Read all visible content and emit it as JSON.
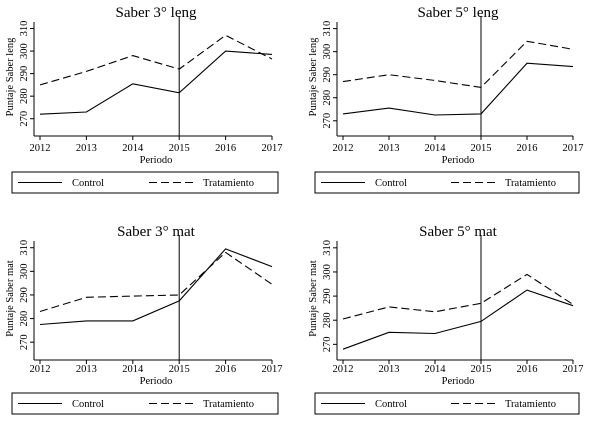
{
  "chart_data": [
    {
      "type": "line",
      "title": "Saber 3° leng",
      "xlabel": "Periodo",
      "ylabel": "Puntaje Saber leng",
      "x": [
        2012,
        2013,
        2014,
        2015,
        2016,
        2017
      ],
      "xlim": [
        2012,
        2017
      ],
      "ylim": [
        265,
        312
      ],
      "yticks": [
        270,
        280,
        290,
        300,
        310
      ],
      "vline": 2015,
      "series": [
        {
          "name": "Control",
          "dash": "solid",
          "values": [
            272,
            273,
            285.5,
            281.5,
            300,
            298.5
          ]
        },
        {
          "name": "Tratamiento",
          "dash": "dashed",
          "values": [
            285,
            291,
            298,
            292,
            307,
            296.5
          ]
        }
      ],
      "legend": [
        "Control",
        "Tratamiento"
      ]
    },
    {
      "type": "line",
      "title": "Saber 5° leng",
      "xlabel": "Periodo",
      "ylabel": "Puntaje Saber leng",
      "x": [
        2012,
        2013,
        2014,
        2015,
        2016,
        2017
      ],
      "xlim": [
        2012,
        2017
      ],
      "ylim": [
        266,
        312
      ],
      "yticks": [
        270,
        280,
        290,
        300,
        310
      ],
      "vline": 2015,
      "series": [
        {
          "name": "Control",
          "dash": "solid",
          "values": [
            273,
            275.5,
            272.5,
            273,
            295,
            293.5
          ]
        },
        {
          "name": "Tratamiento",
          "dash": "dashed",
          "values": [
            287,
            290,
            287.5,
            284.5,
            304.5,
            301
          ]
        }
      ],
      "legend": [
        "Control",
        "Tratamiento"
      ]
    },
    {
      "type": "line",
      "title": "Saber 3° mat",
      "xlabel": "Periodo",
      "ylabel": "Puntaje Saber mat",
      "x": [
        2012,
        2013,
        2014,
        2015,
        2016,
        2017
      ],
      "xlim": [
        2012,
        2017
      ],
      "ylim": [
        265,
        312
      ],
      "yticks": [
        270,
        280,
        290,
        300,
        310
      ],
      "vline": 2015,
      "series": [
        {
          "name": "Control",
          "dash": "solid",
          "values": [
            277.5,
            279,
            279,
            287.5,
            309.5,
            302
          ]
        },
        {
          "name": "Tratamiento",
          "dash": "dashed",
          "values": [
            283,
            289,
            289.5,
            290,
            308,
            294.5
          ]
        }
      ],
      "legend": [
        "Control",
        "Tratamiento"
      ]
    },
    {
      "type": "line",
      "title": "Saber 5° mat",
      "xlabel": "Periodo",
      "ylabel": "Puntaje Saber mat",
      "x": [
        2012,
        2013,
        2014,
        2015,
        2016,
        2017
      ],
      "xlim": [
        2012,
        2017
      ],
      "ylim": [
        266,
        312
      ],
      "yticks": [
        270,
        280,
        290,
        300,
        310
      ],
      "vline": 2015,
      "series": [
        {
          "name": "Control",
          "dash": "solid",
          "values": [
            268,
            275,
            274.5,
            279.5,
            292.5,
            286
          ]
        },
        {
          "name": "Tratamiento",
          "dash": "dashed",
          "values": [
            280.5,
            285.5,
            283.5,
            287,
            299,
            286.5
          ]
        }
      ],
      "legend": [
        "Control",
        "Tratamiento"
      ]
    }
  ]
}
